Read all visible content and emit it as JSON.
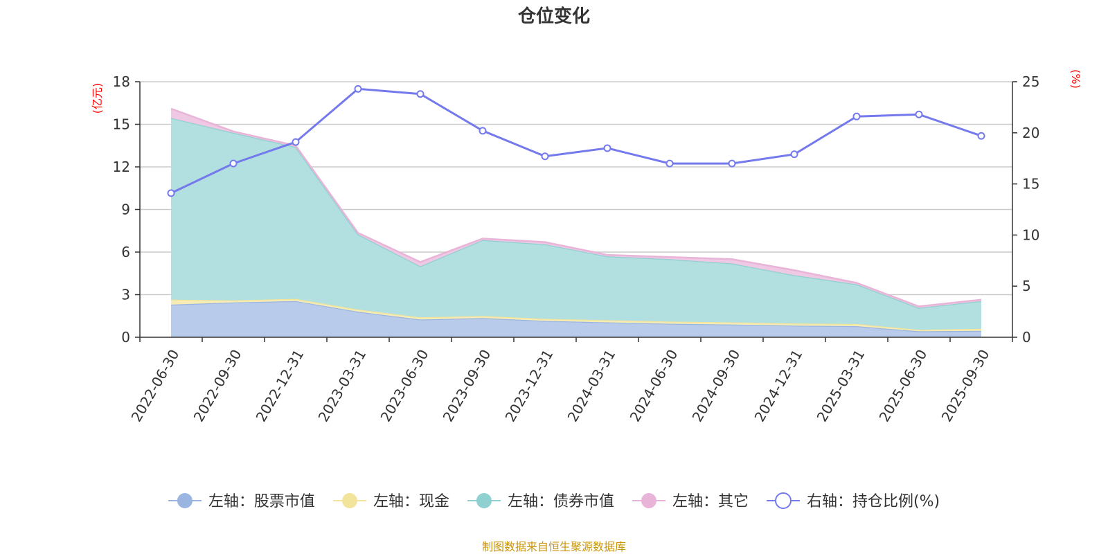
{
  "chart_data": {
    "type": "area",
    "title": "仓位变化",
    "source": "制图数据来自恒生聚源数据库",
    "categories": [
      "2022-06-30",
      "2022-09-30",
      "2022-12-31",
      "2023-03-31",
      "2023-06-30",
      "2023-09-30",
      "2023-12-31",
      "2024-03-31",
      "2024-06-30",
      "2024-09-30",
      "2024-12-31",
      "2025-03-31",
      "2025-06-30",
      "2025-09-30"
    ],
    "left_axis": {
      "unit": "(亿元)",
      "ylim": [
        0,
        18
      ],
      "ticks": [
        "0",
        "3",
        "6",
        "9",
        "12",
        "15",
        "18"
      ]
    },
    "right_axis": {
      "unit": "(%)",
      "ylim": [
        0,
        25
      ],
      "ticks": [
        "0",
        "5",
        "10",
        "15",
        "20",
        "25"
      ]
    },
    "grid": true,
    "legend_position": "bottom",
    "series": [
      {
        "name": "左轴：股票市值",
        "type": "area",
        "axis": "left",
        "stacked": true,
        "color": "#9bb5e1",
        "fill": "#b8cbea",
        "values": [
          2.3,
          2.45,
          2.55,
          1.8,
          1.25,
          1.35,
          1.15,
          1.05,
          0.95,
          0.9,
          0.82,
          0.78,
          0.42,
          0.45
        ]
      },
      {
        "name": "左轴：现金",
        "type": "area",
        "axis": "left",
        "stacked": true,
        "color": "#f3e49c",
        "fill": "#f6ecb6",
        "values": [
          0.35,
          0.15,
          0.15,
          0.15,
          0.15,
          0.15,
          0.15,
          0.15,
          0.15,
          0.15,
          0.15,
          0.15,
          0.1,
          0.15
        ]
      },
      {
        "name": "左轴：债券市值",
        "type": "area",
        "axis": "left",
        "stacked": true,
        "color": "#8fd1d1",
        "fill": "#b2dfe0",
        "values": [
          12.8,
          11.8,
          10.7,
          5.3,
          3.6,
          5.35,
          5.25,
          4.5,
          4.4,
          4.15,
          3.4,
          2.8,
          1.55,
          1.95
        ]
      },
      {
        "name": "左轴：其它",
        "type": "area",
        "axis": "left",
        "stacked": true,
        "color": "#e8b4d8",
        "fill": "#efc8e4",
        "values": [
          0.65,
          0.1,
          0.1,
          0.1,
          0.3,
          0.1,
          0.15,
          0.1,
          0.15,
          0.3,
          0.35,
          0.1,
          0.1,
          0.1
        ]
      },
      {
        "name": "右轴：持仓比例(%)",
        "type": "line",
        "axis": "right",
        "color": "#7479ec",
        "values": [
          14.1,
          17.0,
          19.1,
          24.3,
          23.8,
          20.2,
          17.7,
          18.5,
          17.0,
          17.0,
          17.9,
          21.6,
          21.8,
          19.7
        ]
      }
    ]
  }
}
